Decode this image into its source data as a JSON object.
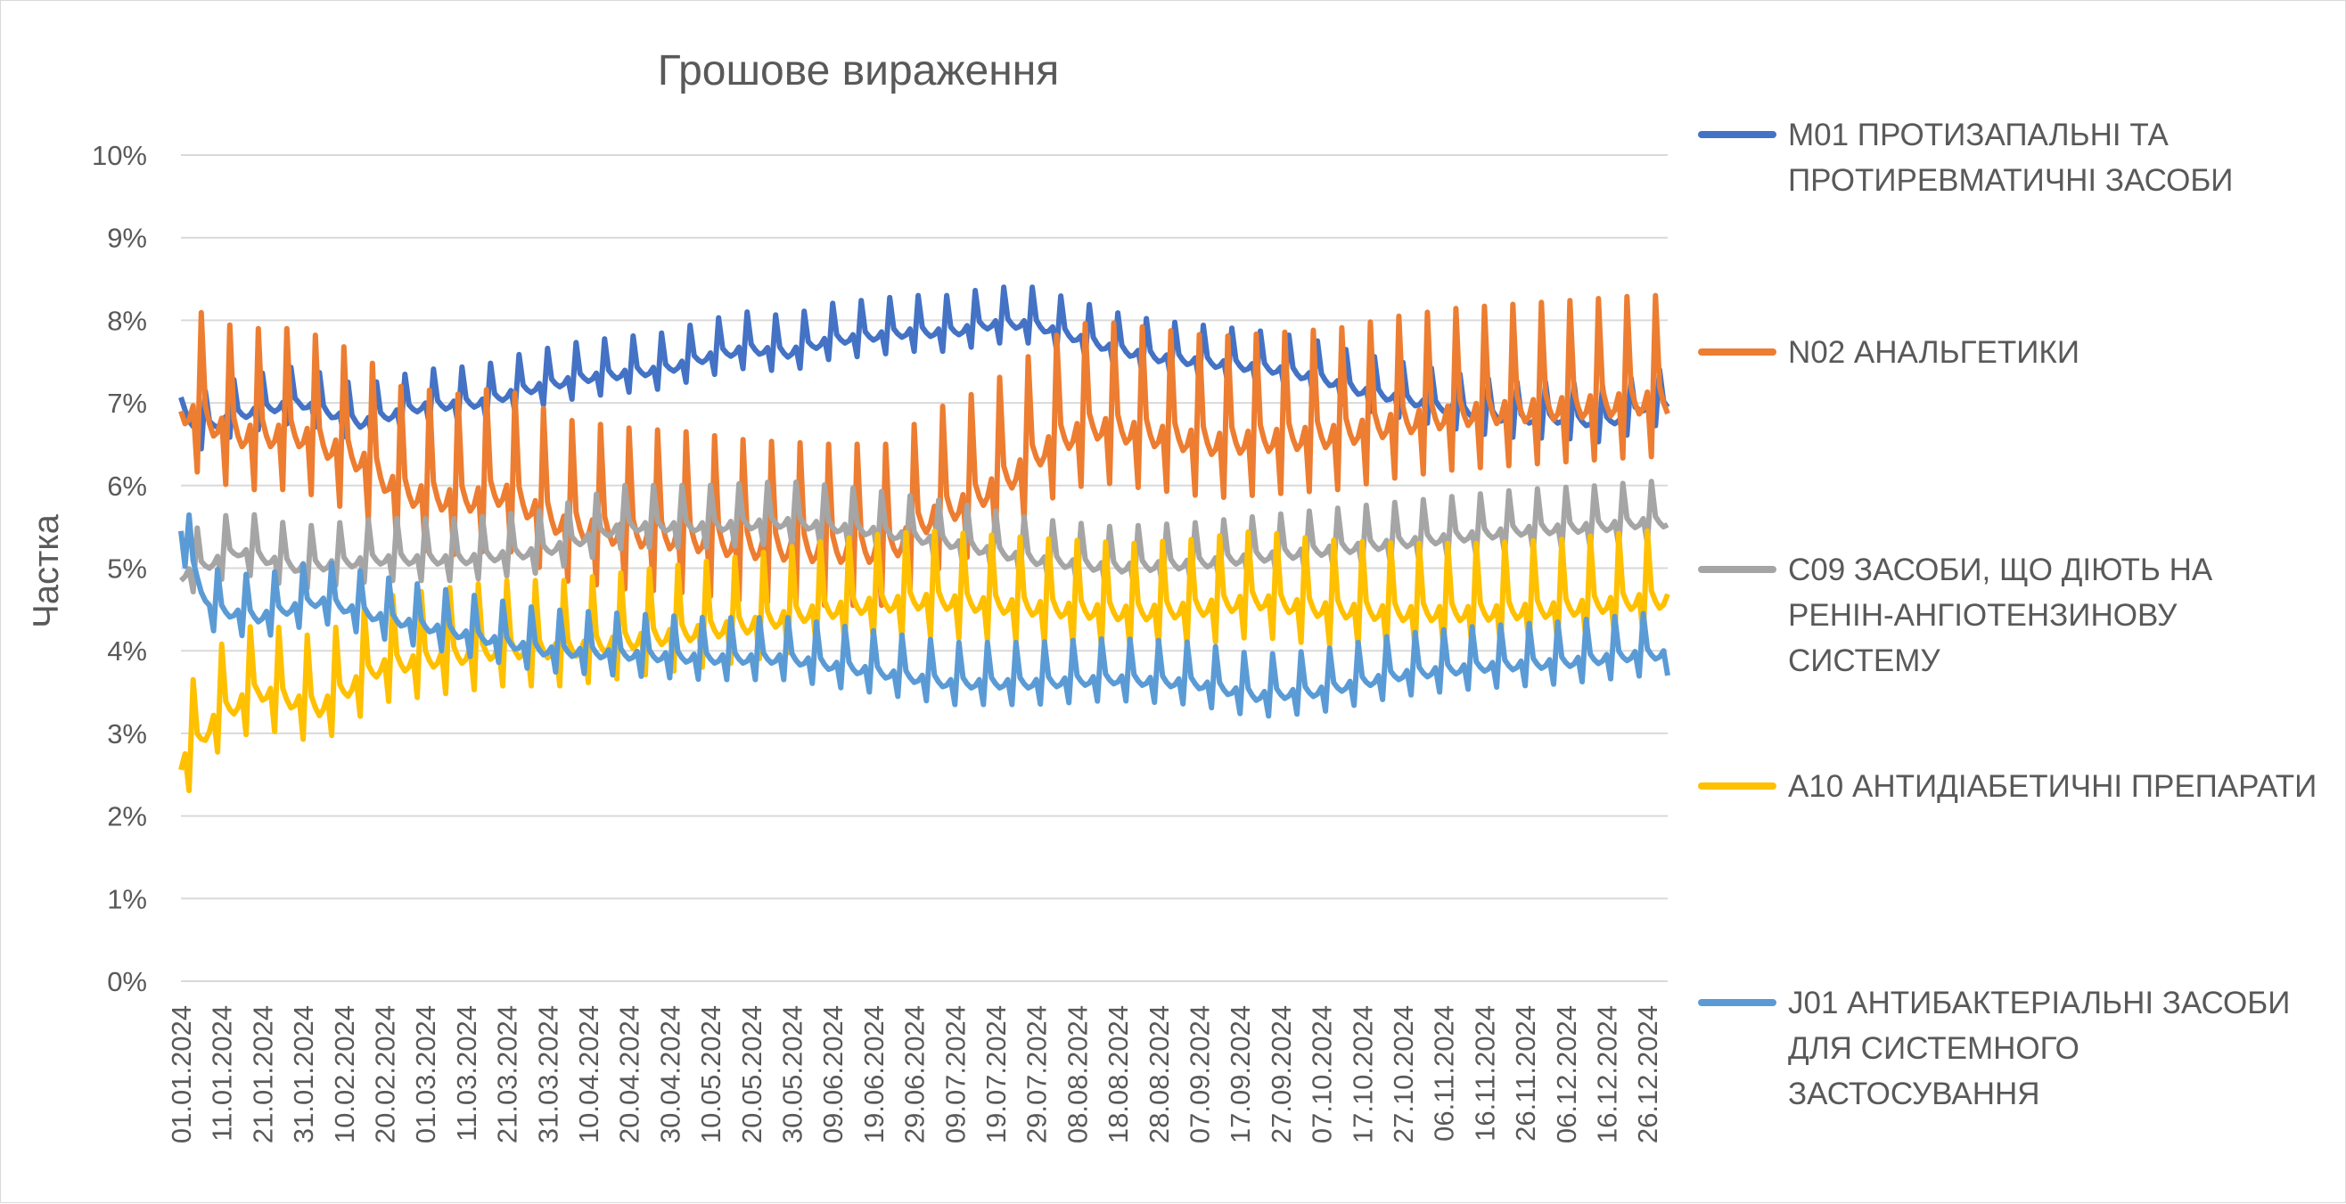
{
  "chart_data": {
    "type": "line",
    "title": "Грошове вираження",
    "xlabel": "",
    "ylabel": "Частка",
    "ylim": [
      0,
      10
    ],
    "yticks": [
      "0%",
      "1%",
      "2%",
      "3%",
      "4%",
      "5%",
      "6%",
      "7%",
      "8%",
      "9%",
      "10%"
    ],
    "xticks": [
      "01.01.2024",
      "11.01.2024",
      "21.01.2024",
      "31.01.2024",
      "10.02.2024",
      "20.02.2024",
      "01.03.2024",
      "11.03.2024",
      "21.03.2024",
      "31.03.2024",
      "10.04.2024",
      "20.04.2024",
      "30.04.2024",
      "10.05.2024",
      "20.05.2024",
      "30.05.2024",
      "09.06.2024",
      "19.06.2024",
      "29.06.2024",
      "09.07.2024",
      "19.07.2024",
      "29.07.2024",
      "08.08.2024",
      "18.08.2024",
      "28.08.2024",
      "07.09.2024",
      "17.09.2024",
      "27.09.2024",
      "07.10.2024",
      "17.10.2024",
      "27.10.2024",
      "06.11.2024",
      "16.11.2024",
      "26.11.2024",
      "06.12.2024",
      "16.12.2024",
      "26.12.2024"
    ],
    "x_start": "01.01.2024",
    "x_end": "31.12.2024",
    "grid": true,
    "legend_position": "right",
    "series": [
      {
        "name": "M01 ПРОТИЗАПАЛЬНІ ТА ПРОТИРЕВМАТИЧНІ ЗАСОБИ",
        "color": "#4472c4",
        "knots": [
          [
            1,
            7.0
          ],
          [
            5,
            6.65
          ],
          [
            15,
            6.85
          ],
          [
            30,
            7.0
          ],
          [
            45,
            6.75
          ],
          [
            60,
            6.95
          ],
          [
            75,
            7.0
          ],
          [
            85,
            7.15
          ],
          [
            100,
            7.3
          ],
          [
            110,
            7.35
          ],
          [
            120,
            7.4
          ],
          [
            130,
            7.55
          ],
          [
            140,
            7.65
          ],
          [
            150,
            7.6
          ],
          [
            160,
            7.75
          ],
          [
            170,
            7.8
          ],
          [
            180,
            7.85
          ],
          [
            190,
            7.85
          ],
          [
            200,
            7.95
          ],
          [
            210,
            7.95
          ],
          [
            220,
            7.8
          ],
          [
            230,
            7.65
          ],
          [
            240,
            7.55
          ],
          [
            250,
            7.5
          ],
          [
            260,
            7.45
          ],
          [
            270,
            7.4
          ],
          [
            280,
            7.3
          ],
          [
            290,
            7.15
          ],
          [
            300,
            7.05
          ],
          [
            310,
            6.95
          ],
          [
            320,
            6.85
          ],
          [
            330,
            6.8
          ],
          [
            340,
            6.8
          ],
          [
            350,
            6.75
          ],
          [
            357,
            6.85
          ],
          [
            360,
            6.95
          ]
        ],
        "wk_amp": 0.45
      },
      {
        "name": "N02 АНАЛЬГЕТИКИ",
        "color": "#ed7d31",
        "knots": [
          [
            1,
            6.9
          ],
          [
            15,
            6.6
          ],
          [
            30,
            6.6
          ],
          [
            45,
            6.3
          ],
          [
            55,
            5.9
          ],
          [
            70,
            5.8
          ],
          [
            80,
            5.9
          ],
          [
            95,
            5.5
          ],
          [
            110,
            5.4
          ],
          [
            125,
            5.35
          ],
          [
            140,
            5.25
          ],
          [
            160,
            5.2
          ],
          [
            175,
            5.2
          ],
          [
            185,
            5.6
          ],
          [
            195,
            5.8
          ],
          [
            205,
            6.1
          ],
          [
            215,
            6.5
          ],
          [
            225,
            6.7
          ],
          [
            240,
            6.6
          ],
          [
            255,
            6.5
          ],
          [
            270,
            6.55
          ],
          [
            285,
            6.6
          ],
          [
            300,
            6.75
          ],
          [
            315,
            6.85
          ],
          [
            330,
            6.9
          ],
          [
            345,
            6.95
          ],
          [
            360,
            7.0
          ]
        ],
        "wk_amp": 1.3
      },
      {
        "name": "C09 ЗАСОБИ, ЩО ДІЮТЬ НА РЕНІН-АНГІОТЕНЗИНОВУ СИСТЕМУ",
        "color": "#a5a5a5",
        "knots": [
          [
            1,
            4.9
          ],
          [
            15,
            5.2
          ],
          [
            30,
            5.0
          ],
          [
            50,
            5.1
          ],
          [
            70,
            5.1
          ],
          [
            90,
            5.2
          ],
          [
            110,
            5.5
          ],
          [
            130,
            5.5
          ],
          [
            150,
            5.55
          ],
          [
            170,
            5.45
          ],
          [
            190,
            5.3
          ],
          [
            210,
            5.1
          ],
          [
            230,
            5.0
          ],
          [
            250,
            5.05
          ],
          [
            270,
            5.15
          ],
          [
            290,
            5.25
          ],
          [
            310,
            5.35
          ],
          [
            330,
            5.45
          ],
          [
            350,
            5.5
          ],
          [
            360,
            5.55
          ]
        ],
        "wk_amp": 0.5
      },
      {
        "name": "A10 АНТИДІАБЕТИЧНІ ПРЕПАРАТИ",
        "color": "#ffc000",
        "knots": [
          [
            1,
            2.6
          ],
          [
            10,
            3.2
          ],
          [
            20,
            3.5
          ],
          [
            35,
            3.3
          ],
          [
            50,
            3.8
          ],
          [
            65,
            3.9
          ],
          [
            80,
            4.0
          ],
          [
            95,
            4.0
          ],
          [
            110,
            4.1
          ],
          [
            125,
            4.2
          ],
          [
            140,
            4.3
          ],
          [
            155,
            4.45
          ],
          [
            170,
            4.55
          ],
          [
            185,
            4.6
          ],
          [
            200,
            4.55
          ],
          [
            215,
            4.5
          ],
          [
            235,
            4.45
          ],
          [
            250,
            4.5
          ],
          [
            265,
            4.6
          ],
          [
            280,
            4.5
          ],
          [
            300,
            4.45
          ],
          [
            320,
            4.45
          ],
          [
            340,
            4.5
          ],
          [
            360,
            4.6
          ]
        ],
        "wk_amp": 0.85
      },
      {
        "name": "J01 АНТИБАКТЕРІАЛЬНІ ЗАСОБИ ДЛЯ СИСТЕМНОГО ЗАСТОСУВАННЯ",
        "color": "#5b9bd5",
        "knots": [
          [
            1,
            5.4
          ],
          [
            8,
            4.5
          ],
          [
            20,
            4.4
          ],
          [
            35,
            4.6
          ],
          [
            50,
            4.4
          ],
          [
            70,
            4.2
          ],
          [
            90,
            4.0
          ],
          [
            110,
            3.95
          ],
          [
            130,
            3.9
          ],
          [
            150,
            3.9
          ],
          [
            170,
            3.75
          ],
          [
            190,
            3.6
          ],
          [
            210,
            3.6
          ],
          [
            230,
            3.65
          ],
          [
            250,
            3.6
          ],
          [
            265,
            3.45
          ],
          [
            280,
            3.5
          ],
          [
            300,
            3.7
          ],
          [
            320,
            3.8
          ],
          [
            340,
            3.85
          ],
          [
            360,
            3.95
          ]
        ],
        "wk_amp": 0.5
      }
    ]
  }
}
